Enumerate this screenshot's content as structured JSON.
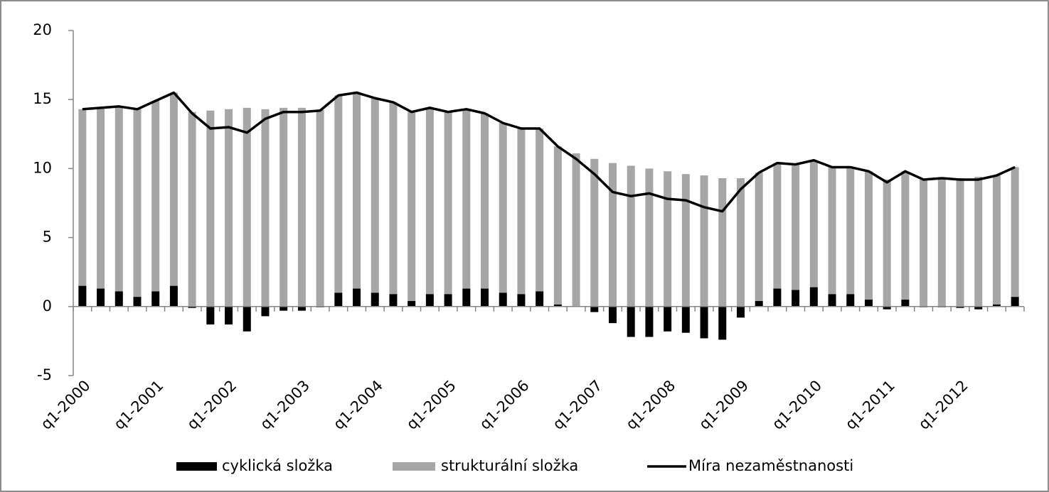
{
  "chart_data": {
    "type": "bar",
    "categories": [
      "q1-2000",
      null,
      null,
      null,
      "q1-2001",
      null,
      null,
      null,
      "q1-2002",
      null,
      null,
      null,
      "q1-2003",
      null,
      null,
      null,
      "q1-2004",
      null,
      null,
      null,
      "q1-2005",
      null,
      null,
      null,
      "q1-2006",
      null,
      null,
      null,
      "q1-2007",
      null,
      null,
      null,
      "q1-2008",
      null,
      null,
      null,
      "q1-2009",
      null,
      null,
      null,
      "q1-2010",
      null,
      null,
      null,
      "q1-2011",
      null,
      null,
      null,
      "q1-2012",
      null,
      null,
      null
    ],
    "series": [
      {
        "name": "cyklická složka",
        "color": "#000000",
        "values": [
          1.5,
          1.3,
          1.1,
          0.7,
          1.1,
          1.5,
          -0.1,
          -1.3,
          -1.3,
          -1.8,
          -0.7,
          -0.3,
          -0.3,
          -0.05,
          1.0,
          1.3,
          1.0,
          0.9,
          0.4,
          0.9,
          0.9,
          1.3,
          1.3,
          1.0,
          0.9,
          1.1,
          0.15,
          0,
          -0.4,
          -1.2,
          -2.2,
          -2.2,
          -1.8,
          -1.9,
          -2.3,
          -2.4,
          -0.8,
          0.4,
          1.3,
          1.2,
          1.4,
          0.9,
          0.9,
          0.5,
          -0.2,
          0.5,
          -0.05,
          -0.05,
          -0.1,
          -0.2,
          0.15,
          0.7
        ]
      },
      {
        "name": "strukturální složka",
        "color": "#a6a6a6",
        "values": [
          12.8,
          13.1,
          13.4,
          13.6,
          13.8,
          14.0,
          14.1,
          14.2,
          14.3,
          14.4,
          14.3,
          14.4,
          14.4,
          14.25,
          14.3,
          14.2,
          14.1,
          13.9,
          13.7,
          13.5,
          13.2,
          13.0,
          12.7,
          12.3,
          12.0,
          11.8,
          11.45,
          11.1,
          10.7,
          10.4,
          10.2,
          10.0,
          9.8,
          9.6,
          9.5,
          9.3,
          9.3,
          9.3,
          9.1,
          9.1,
          9.2,
          9.2,
          9.2,
          9.3,
          9.2,
          9.3,
          9.25,
          9.35,
          9.3,
          9.4,
          9.35,
          9.4
        ]
      },
      {
        "name": "Míra nezaměstnanosti",
        "color": "#000000",
        "type": "line",
        "values": [
          14.3,
          14.4,
          14.5,
          14.3,
          14.9,
          15.5,
          14.0,
          12.9,
          13.0,
          12.6,
          13.6,
          14.1,
          14.1,
          14.2,
          15.3,
          15.5,
          15.1,
          14.8,
          14.1,
          14.4,
          14.1,
          14.3,
          14.0,
          13.3,
          12.9,
          12.9,
          11.6,
          10.7,
          9.6,
          8.3,
          8.0,
          8.2,
          7.8,
          7.7,
          7.2,
          6.9,
          8.5,
          9.7,
          10.4,
          10.3,
          10.6,
          10.1,
          10.1,
          9.8,
          9.0,
          9.8,
          9.2,
          9.3,
          9.2,
          9.2,
          9.5,
          10.1
        ]
      }
    ],
    "ylim": [
      -5,
      20
    ],
    "yticks": [
      -5,
      0,
      5,
      10,
      15,
      20
    ],
    "legend": "bottom"
  }
}
